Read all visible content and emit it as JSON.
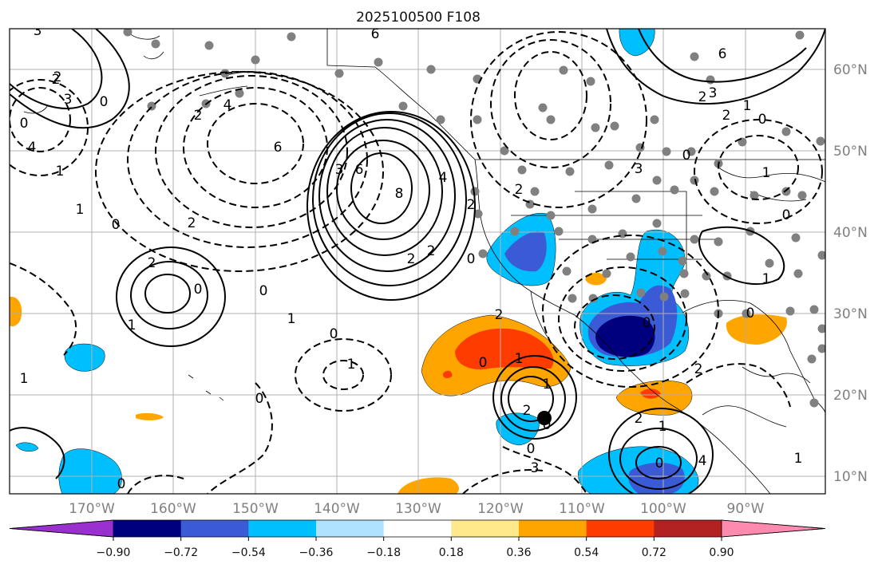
{
  "title": "2025100500 F108",
  "lat_labels": [
    "60°N",
    "50°N",
    "40°N",
    "30°N",
    "20°N",
    "10°N"
  ],
  "lon_labels": [
    "170°W",
    "160°W",
    "150°W",
    "140°W",
    "130°W",
    "120°W",
    "110°W",
    "100°W",
    "90°W"
  ],
  "colorbar": {
    "colors": [
      "#9a30cf",
      "#00007f",
      "#3b5bd6",
      "#00bfff",
      "#aee2ff",
      "#ffffff",
      "#ffe98a",
      "#ffa500",
      "#ff3c00",
      "#b22222",
      "#ff8ab0"
    ],
    "tick_labels": [
      "−0.90",
      "−0.72",
      "−0.54",
      "−0.36",
      "−0.18",
      "0.18",
      "0.36",
      "0.54",
      "0.72",
      "0.90"
    ]
  },
  "contour_labels": [
    "3",
    "2",
    "0",
    "6",
    "3",
    "2",
    "1",
    "0",
    "4",
    "1",
    "2",
    "6",
    "4",
    "2",
    "0",
    "2",
    "0",
    "1",
    "2",
    "6",
    "3",
    "8",
    "4",
    "2",
    "2",
    "2",
    "0",
    "0",
    "1",
    "0",
    "1",
    "0",
    "1",
    "2",
    "0",
    "2",
    "1",
    "0",
    "0",
    "2",
    "1",
    "0",
    "4",
    "3",
    "2",
    "1",
    "0",
    "6",
    "2",
    "3",
    "0",
    "1",
    "0",
    "1",
    "0",
    "2",
    "1",
    "3",
    "0",
    "1",
    "0"
  ],
  "colors": {
    "solid_contour": "#000000",
    "dashed_contour": "#000000",
    "coast": "#000000",
    "grid": "#b0b0b0",
    "station": "#808080"
  }
}
